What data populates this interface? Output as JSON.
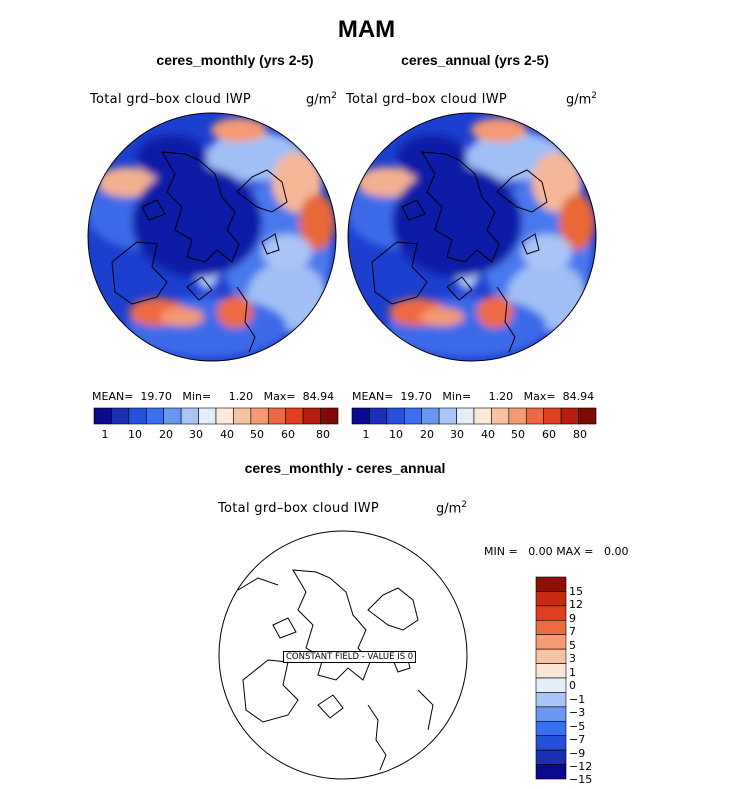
{
  "title": "MAM",
  "panels": [
    {
      "case_title": "ceres_monthly (yrs 2-5)",
      "field_label": "Total grd–box cloud IWP",
      "units": "g/m",
      "units_sup": "2",
      "mean_label": "MEAN=",
      "mean": "19.70",
      "min_label": "Min=",
      "min": "1.20",
      "max_label": "Max=",
      "max": "84.94"
    },
    {
      "case_title": "ceres_annual (yrs 2-5)",
      "field_label": "Total grd–box cloud IWP",
      "units": "g/m",
      "units_sup": "2",
      "mean_label": "MEAN=",
      "mean": "19.70",
      "min_label": "Min=",
      "min": "1.20",
      "max_label": "Max=",
      "max": "84.94"
    }
  ],
  "diff_panel": {
    "case_title": "ceres_monthly - ceres_annual",
    "field_label": "Total grd–box cloud IWP",
    "units": "g/m",
    "units_sup": "2",
    "min_label": "MIN =",
    "min": "0.00",
    "max_label": "MAX =",
    "max": "0.00",
    "constant_label": "CONSTANT FIELD - VALUE IS 0"
  },
  "colors": {
    "main_colorbar": [
      "#0a0a8c",
      "#1a2fb4",
      "#2550dc",
      "#3a6ff0",
      "#6b97f0",
      "#a9c5f5",
      "#e4eefb",
      "#fde7d8",
      "#f8c3a5",
      "#f59a73",
      "#ee6a42",
      "#e0401f",
      "#b81e0e",
      "#7d0a04"
    ],
    "diff_colorbar": [
      "#0a0a8c",
      "#1a2fb4",
      "#2550dc",
      "#3a6ff0",
      "#6b97f0",
      "#a9c5f5",
      "#e4eefb",
      "#fbe5d6",
      "#f8c3a5",
      "#f59a73",
      "#ee6a42",
      "#e0401f",
      "#c52a12",
      "#8e0f06"
    ],
    "map_base": "#1d3fcf",
    "map_pole": "#0b1aa6"
  },
  "chart_data": [
    {
      "type": "heatmap",
      "title": "ceres_monthly (yrs 2-5)",
      "subtitle": "Total grd–box cloud IWP",
      "units": "g/m2",
      "projection": "north polar stereographic",
      "colorbar_levels": [
        1,
        5,
        10,
        15,
        20,
        25,
        30,
        35,
        40,
        45,
        50,
        55,
        60,
        70,
        80
      ],
      "colorbar_tick_labels": [
        "1",
        "10",
        "20",
        "30",
        "40",
        "50",
        "60",
        "80"
      ],
      "stats": {
        "mean": 19.7,
        "min": 1.2,
        "max": 84.94
      }
    },
    {
      "type": "heatmap",
      "title": "ceres_annual (yrs 2-5)",
      "subtitle": "Total grd–box cloud IWP",
      "units": "g/m2",
      "projection": "north polar stereographic",
      "colorbar_levels": [
        1,
        5,
        10,
        15,
        20,
        25,
        30,
        35,
        40,
        45,
        50,
        55,
        60,
        70,
        80
      ],
      "colorbar_tick_labels": [
        "1",
        "10",
        "20",
        "30",
        "40",
        "50",
        "60",
        "80"
      ],
      "stats": {
        "mean": 19.7,
        "min": 1.2,
        "max": 84.94
      }
    },
    {
      "type": "heatmap",
      "title": "ceres_monthly - ceres_annual",
      "subtitle": "Total grd–box cloud IWP",
      "units": "g/m2",
      "projection": "north polar stereographic",
      "colorbar_tick_labels": [
        "15",
        "12",
        "9",
        "7",
        "5",
        "3",
        "1",
        "0",
        "−1",
        "−3",
        "−5",
        "−7",
        "−9",
        "−12",
        "−15"
      ],
      "stats": {
        "min": 0.0,
        "max": 0.0
      },
      "annotation": "CONSTANT FIELD - VALUE IS 0"
    }
  ]
}
